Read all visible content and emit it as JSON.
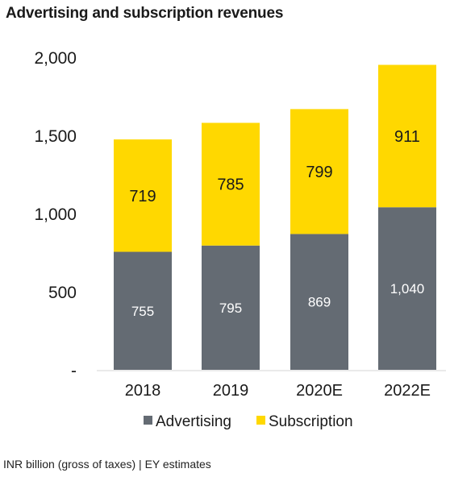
{
  "chart_data": {
    "type": "bar",
    "stacked": true,
    "title": "Advertising and subscription revenues",
    "categories": [
      "2018",
      "2019",
      "2020E",
      "2022E"
    ],
    "series": [
      {
        "name": "Advertising",
        "values": [
          755,
          795,
          869,
          1040
        ],
        "labels": [
          "755",
          "795",
          "869",
          "1,040"
        ],
        "color": "#646b73"
      },
      {
        "name": "Subscription",
        "values": [
          719,
          785,
          799,
          911
        ],
        "labels": [
          "719",
          "785",
          "799",
          "911"
        ],
        "color": "#ffd800"
      }
    ],
    "y_ticks": [
      {
        "value": 0,
        "label": "-"
      },
      {
        "value": 500,
        "label": "500"
      },
      {
        "value": 1000,
        "label": "1,000"
      },
      {
        "value": 1500,
        "label": "1,500"
      },
      {
        "value": 2000,
        "label": "2,000"
      }
    ],
    "ylim": [
      0,
      2000
    ],
    "grid": false,
    "legend_position": "bottom",
    "footnote": "INR billion (gross of taxes) | EY estimates"
  }
}
